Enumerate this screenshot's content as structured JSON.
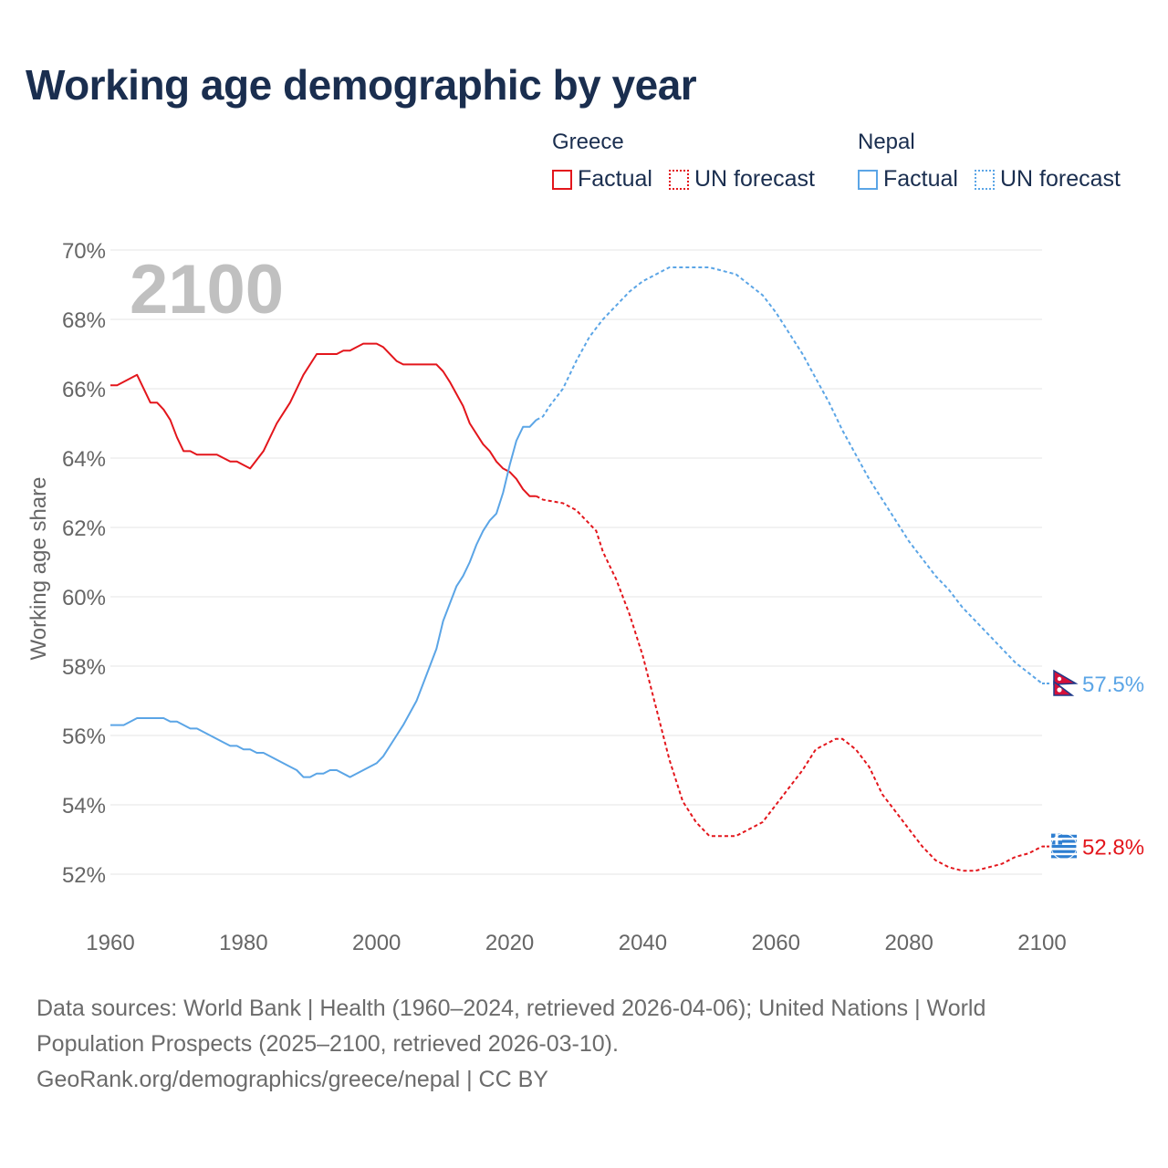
{
  "title": "Working age demographic by year",
  "legend": {
    "greece": {
      "country": "Greece",
      "factual": "Factual",
      "forecast": "UN forecast",
      "color": "#e3161c"
    },
    "nepal": {
      "country": "Nepal",
      "factual": "Factual",
      "forecast": "UN forecast",
      "color": "#5ba5e6"
    }
  },
  "footer": {
    "line1": "Data sources: World Bank | Health (1960–2024, retrieved 2026-04-06); United Nations | World",
    "line2": "Population Prospects (2025–2100, retrieved 2026-03-10).",
    "line3": "GeoRank.org/demographics/greece/nepal | CC BY"
  },
  "chart_data": {
    "type": "line",
    "year_watermark": "2100",
    "ylabel": "Working age share",
    "xlabel": "",
    "xlim": [
      1960,
      2100
    ],
    "ylim": [
      51,
      70
    ],
    "x_ticks": [
      1960,
      1980,
      2000,
      2020,
      2040,
      2060,
      2080,
      2100
    ],
    "y_ticks": [
      52,
      54,
      56,
      58,
      60,
      62,
      64,
      66,
      68,
      70
    ],
    "y_tick_labels": [
      "52%",
      "54%",
      "56%",
      "58%",
      "60%",
      "62%",
      "64%",
      "66%",
      "68%",
      "70%"
    ],
    "factual_range": [
      1960,
      2024
    ],
    "forecast_range": [
      2024,
      2100
    ],
    "series": [
      {
        "name": "Greece",
        "color": "#e3161c",
        "end_label": "52.8%",
        "points": [
          [
            1960,
            66.1
          ],
          [
            1961,
            66.1
          ],
          [
            1964,
            66.4
          ],
          [
            1966,
            65.6
          ],
          [
            1967,
            65.6
          ],
          [
            1968,
            65.4
          ],
          [
            1969,
            65.1
          ],
          [
            1970,
            64.6
          ],
          [
            1971,
            64.2
          ],
          [
            1972,
            64.2
          ],
          [
            1973,
            64.1
          ],
          [
            1976,
            64.1
          ],
          [
            1978,
            63.9
          ],
          [
            1979,
            63.9
          ],
          [
            1981,
            63.7
          ],
          [
            1983,
            64.2
          ],
          [
            1985,
            65.0
          ],
          [
            1986,
            65.3
          ],
          [
            1987,
            65.6
          ],
          [
            1989,
            66.4
          ],
          [
            1991,
            67.0
          ],
          [
            1994,
            67.0
          ],
          [
            1995,
            67.1
          ],
          [
            1996,
            67.1
          ],
          [
            1998,
            67.3
          ],
          [
            2000,
            67.3
          ],
          [
            2001,
            67.2
          ],
          [
            2003,
            66.8
          ],
          [
            2004,
            66.7
          ],
          [
            2009,
            66.7
          ],
          [
            2010,
            66.5
          ],
          [
            2011,
            66.2
          ],
          [
            2013,
            65.5
          ],
          [
            2014,
            65.0
          ],
          [
            2016,
            64.4
          ],
          [
            2017,
            64.2
          ],
          [
            2018,
            63.9
          ],
          [
            2019,
            63.7
          ],
          [
            2020,
            63.6
          ],
          [
            2021,
            63.4
          ],
          [
            2022,
            63.1
          ],
          [
            2023,
            62.9
          ],
          [
            2024,
            62.9
          ],
          [
            2025,
            62.8
          ],
          [
            2028,
            62.7
          ],
          [
            2030,
            62.5
          ],
          [
            2032,
            62.1
          ],
          [
            2033,
            61.9
          ],
          [
            2034,
            61.3
          ],
          [
            2036,
            60.5
          ],
          [
            2038,
            59.5
          ],
          [
            2040,
            58.3
          ],
          [
            2042,
            56.8
          ],
          [
            2044,
            55.3
          ],
          [
            2046,
            54.1
          ],
          [
            2048,
            53.5
          ],
          [
            2050,
            53.1
          ],
          [
            2052,
            53.1
          ],
          [
            2054,
            53.1
          ],
          [
            2056,
            53.3
          ],
          [
            2058,
            53.5
          ],
          [
            2060,
            54.0
          ],
          [
            2062,
            54.5
          ],
          [
            2064,
            55.0
          ],
          [
            2066,
            55.6
          ],
          [
            2068,
            55.8
          ],
          [
            2069,
            55.9
          ],
          [
            2070,
            55.9
          ],
          [
            2072,
            55.6
          ],
          [
            2074,
            55.1
          ],
          [
            2076,
            54.3
          ],
          [
            2078,
            53.8
          ],
          [
            2080,
            53.3
          ],
          [
            2082,
            52.8
          ],
          [
            2084,
            52.4
          ],
          [
            2086,
            52.2
          ],
          [
            2088,
            52.1
          ],
          [
            2090,
            52.1
          ],
          [
            2092,
            52.2
          ],
          [
            2094,
            52.3
          ],
          [
            2096,
            52.5
          ],
          [
            2098,
            52.6
          ],
          [
            2100,
            52.8
          ]
        ]
      },
      {
        "name": "Nepal",
        "color": "#5ba5e6",
        "end_label": "57.5%",
        "points": [
          [
            1960,
            56.3
          ],
          [
            1962,
            56.3
          ],
          [
            1964,
            56.5
          ],
          [
            1968,
            56.5
          ],
          [
            1969,
            56.4
          ],
          [
            1970,
            56.4
          ],
          [
            1972,
            56.2
          ],
          [
            1973,
            56.2
          ],
          [
            1975,
            56.0
          ],
          [
            1977,
            55.8
          ],
          [
            1978,
            55.7
          ],
          [
            1979,
            55.7
          ],
          [
            1980,
            55.6
          ],
          [
            1981,
            55.6
          ],
          [
            1982,
            55.5
          ],
          [
            1983,
            55.5
          ],
          [
            1985,
            55.3
          ],
          [
            1987,
            55.1
          ],
          [
            1988,
            55.0
          ],
          [
            1989,
            54.8
          ],
          [
            1990,
            54.8
          ],
          [
            1991,
            54.9
          ],
          [
            1992,
            54.9
          ],
          [
            1993,
            55.0
          ],
          [
            1994,
            55.0
          ],
          [
            1996,
            54.8
          ],
          [
            1998,
            55.0
          ],
          [
            2000,
            55.2
          ],
          [
            2001,
            55.4
          ],
          [
            2003,
            56.0
          ],
          [
            2004,
            56.3
          ],
          [
            2006,
            57.0
          ],
          [
            2007,
            57.5
          ],
          [
            2009,
            58.5
          ],
          [
            2010,
            59.3
          ],
          [
            2012,
            60.3
          ],
          [
            2013,
            60.6
          ],
          [
            2014,
            61.0
          ],
          [
            2015,
            61.5
          ],
          [
            2016,
            61.9
          ],
          [
            2017,
            62.2
          ],
          [
            2018,
            62.4
          ],
          [
            2019,
            63.0
          ],
          [
            2020,
            63.8
          ],
          [
            2021,
            64.5
          ],
          [
            2022,
            64.9
          ],
          [
            2023,
            64.9
          ],
          [
            2024,
            65.1
          ],
          [
            2025,
            65.2
          ],
          [
            2026,
            65.5
          ],
          [
            2028,
            66.0
          ],
          [
            2030,
            66.8
          ],
          [
            2032,
            67.5
          ],
          [
            2034,
            68.0
          ],
          [
            2036,
            68.4
          ],
          [
            2038,
            68.8
          ],
          [
            2040,
            69.1
          ],
          [
            2042,
            69.3
          ],
          [
            2044,
            69.5
          ],
          [
            2046,
            69.5
          ],
          [
            2048,
            69.5
          ],
          [
            2050,
            69.5
          ],
          [
            2052,
            69.4
          ],
          [
            2054,
            69.3
          ],
          [
            2056,
            69.0
          ],
          [
            2058,
            68.7
          ],
          [
            2060,
            68.2
          ],
          [
            2062,
            67.6
          ],
          [
            2064,
            67.0
          ],
          [
            2066,
            66.3
          ],
          [
            2068,
            65.6
          ],
          [
            2070,
            64.8
          ],
          [
            2072,
            64.1
          ],
          [
            2074,
            63.4
          ],
          [
            2076,
            62.8
          ],
          [
            2078,
            62.2
          ],
          [
            2080,
            61.6
          ],
          [
            2082,
            61.1
          ],
          [
            2084,
            60.6
          ],
          [
            2086,
            60.2
          ],
          [
            2088,
            59.7
          ],
          [
            2090,
            59.3
          ],
          [
            2092,
            58.9
          ],
          [
            2094,
            58.5
          ],
          [
            2096,
            58.1
          ],
          [
            2098,
            57.8
          ],
          [
            2100,
            57.5
          ]
        ]
      }
    ]
  }
}
